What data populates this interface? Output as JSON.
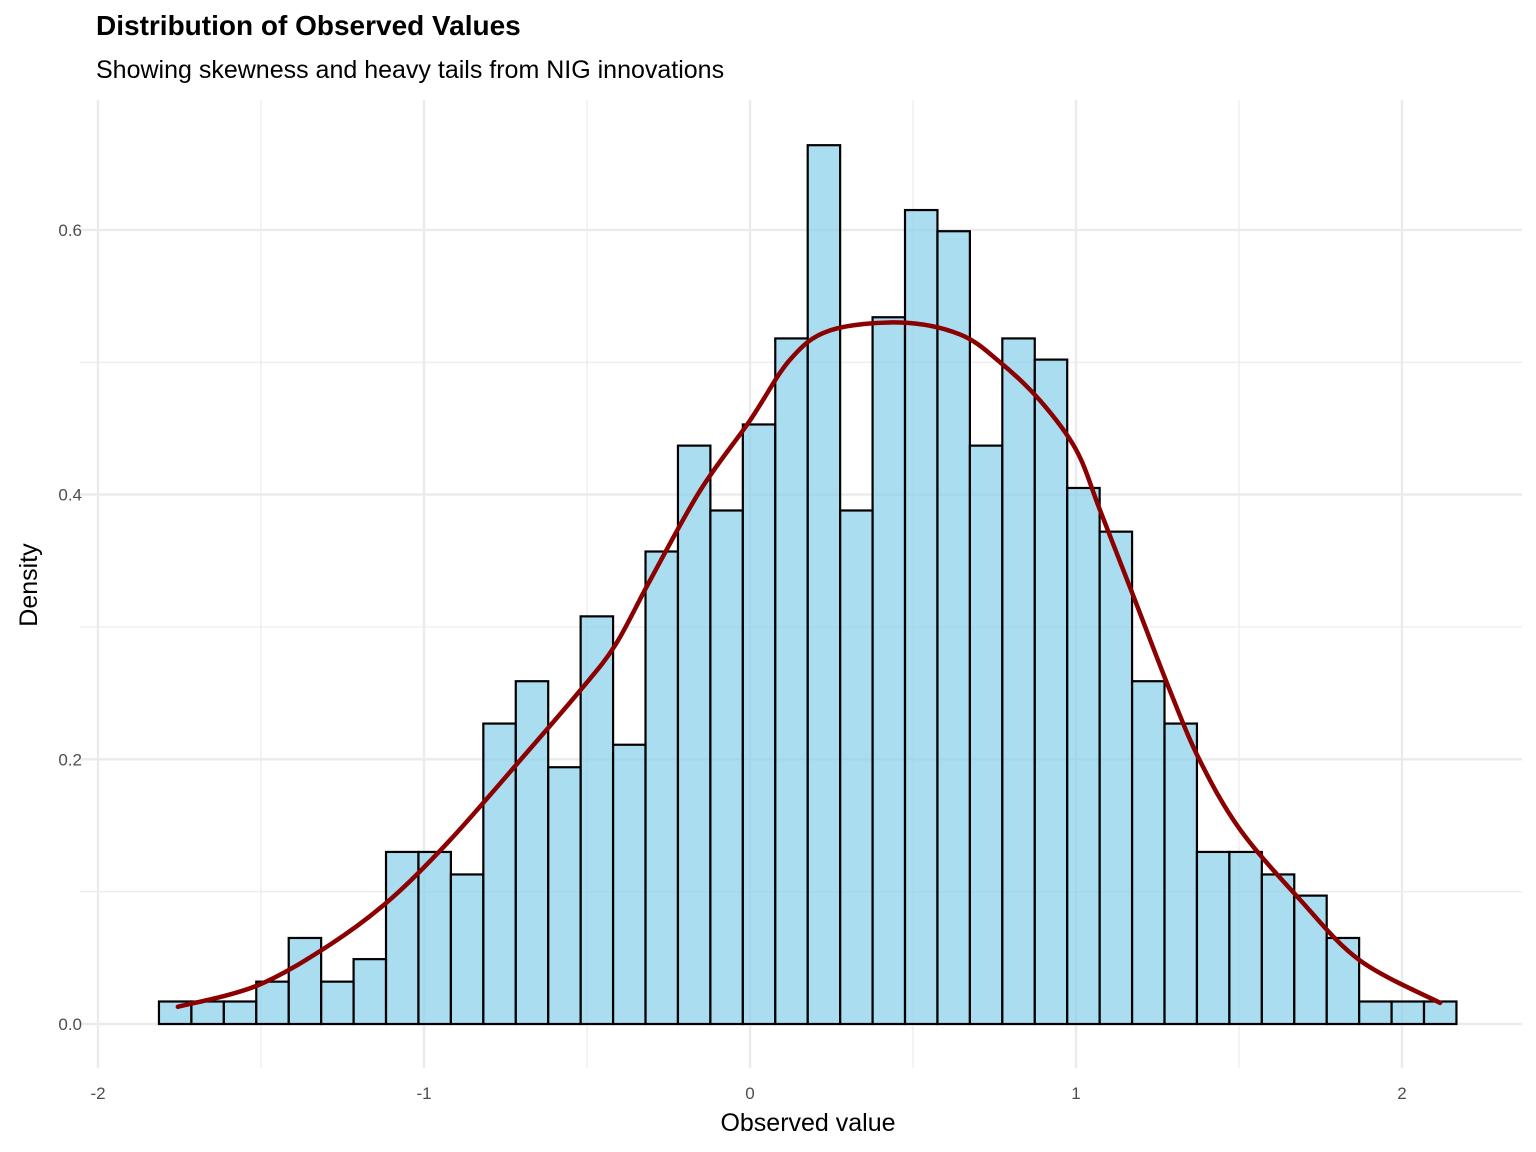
{
  "chart_data": {
    "type": "bar",
    "title": "Distribution of Observed Values",
    "subtitle": "Showing skewness and heavy tails from NIG innovations",
    "xlabel": "Observed value",
    "ylabel": "Density",
    "xlim": [
      -2.0,
      2.3
    ],
    "ylim": [
      0,
      0.68
    ],
    "xticks": [
      -2,
      -1,
      0,
      1,
      2
    ],
    "xtick_labels": [
      "-2",
      "-1",
      "0",
      "1",
      "2"
    ],
    "yticks": [
      0,
      0.2,
      0.4,
      0.6
    ],
    "ytick_labels": [
      "0.0",
      "0.2",
      "0.4",
      "0.6"
    ],
    "grid": true,
    "histogram": {
      "bin_start": -1.813,
      "bin_width": 0.0995,
      "fill": "#87CEEB",
      "edge": "#000000",
      "densities": [
        0.017,
        0.017,
        0.017,
        0.032,
        0.065,
        0.032,
        0.049,
        0.13,
        0.13,
        0.113,
        0.227,
        0.259,
        0.194,
        0.308,
        0.211,
        0.357,
        0.437,
        0.388,
        0.453,
        0.518,
        0.664,
        0.388,
        0.534,
        0.615,
        0.599,
        0.437,
        0.518,
        0.502,
        0.405,
        0.372,
        0.259,
        0.227,
        0.13,
        0.13,
        0.113,
        0.097,
        0.065,
        0.017,
        0.017,
        0.017
      ]
    },
    "density_curve": {
      "color": "#8B0000",
      "x": [
        -1.755,
        -1.512,
        -1.288,
        -1.104,
        -0.92,
        -0.706,
        -0.521,
        -0.414,
        -0.307,
        -0.153,
        0.0,
        0.123,
        0.245,
        0.46,
        0.644,
        0.767,
        0.89,
        1.0,
        1.074,
        1.175,
        1.288,
        1.38,
        1.503,
        1.687,
        1.871,
        2.117
      ],
      "y": [
        0.013,
        0.029,
        0.06,
        0.094,
        0.139,
        0.199,
        0.252,
        0.286,
        0.335,
        0.403,
        0.456,
        0.502,
        0.524,
        0.53,
        0.521,
        0.5,
        0.471,
        0.434,
        0.388,
        0.324,
        0.252,
        0.199,
        0.147,
        0.094,
        0.048,
        0.016
      ]
    }
  }
}
